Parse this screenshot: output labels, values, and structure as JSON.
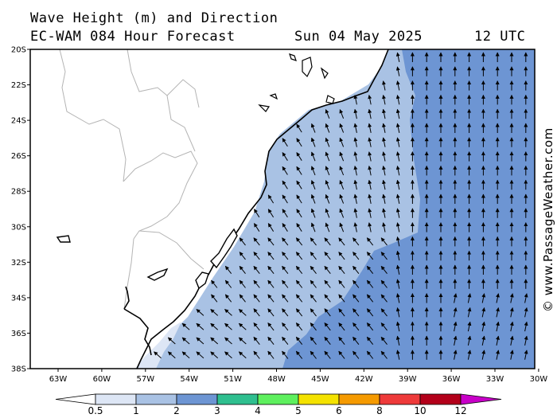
{
  "header": {
    "title": "Wave Height (m) and Direction",
    "model": "EC-WAM 084 Hour Forecast",
    "date": "Sun 04 May 2025",
    "time": "12 UTC"
  },
  "map": {
    "lon_range": [
      -65,
      -30
    ],
    "lat_range": [
      -38,
      -20
    ],
    "lat_labels": [
      "20S",
      "22S",
      "24S",
      "26S",
      "28S",
      "30S",
      "32S",
      "34S",
      "36S",
      "38S"
    ],
    "lon_labels": [
      "63W",
      "60W",
      "57W",
      "54W",
      "51W",
      "48W",
      "45W",
      "42W",
      "39W",
      "36W",
      "33W",
      "30W"
    ],
    "colors": {
      "sea_0_5_1": "#dde6f5",
      "sea_1_2": "#a9c2e4",
      "sea_2_3": "#6d95d3",
      "arrow": "#000000",
      "coast": "#000000",
      "border": "#b4b4b4"
    }
  },
  "colorbar": {
    "labels": [
      "0.5",
      "1",
      "2",
      "3",
      "4",
      "5",
      "6",
      "8",
      "10",
      "12"
    ],
    "colors": [
      "#ffffff",
      "#dde6f5",
      "#a9c2e4",
      "#6d95d3",
      "#2fbf8f",
      "#5ef05e",
      "#f4e200",
      "#f59a00",
      "#ee3a3a",
      "#b3001a",
      "#c800c8"
    ]
  },
  "credit": "© www.PassageWeather.com"
}
